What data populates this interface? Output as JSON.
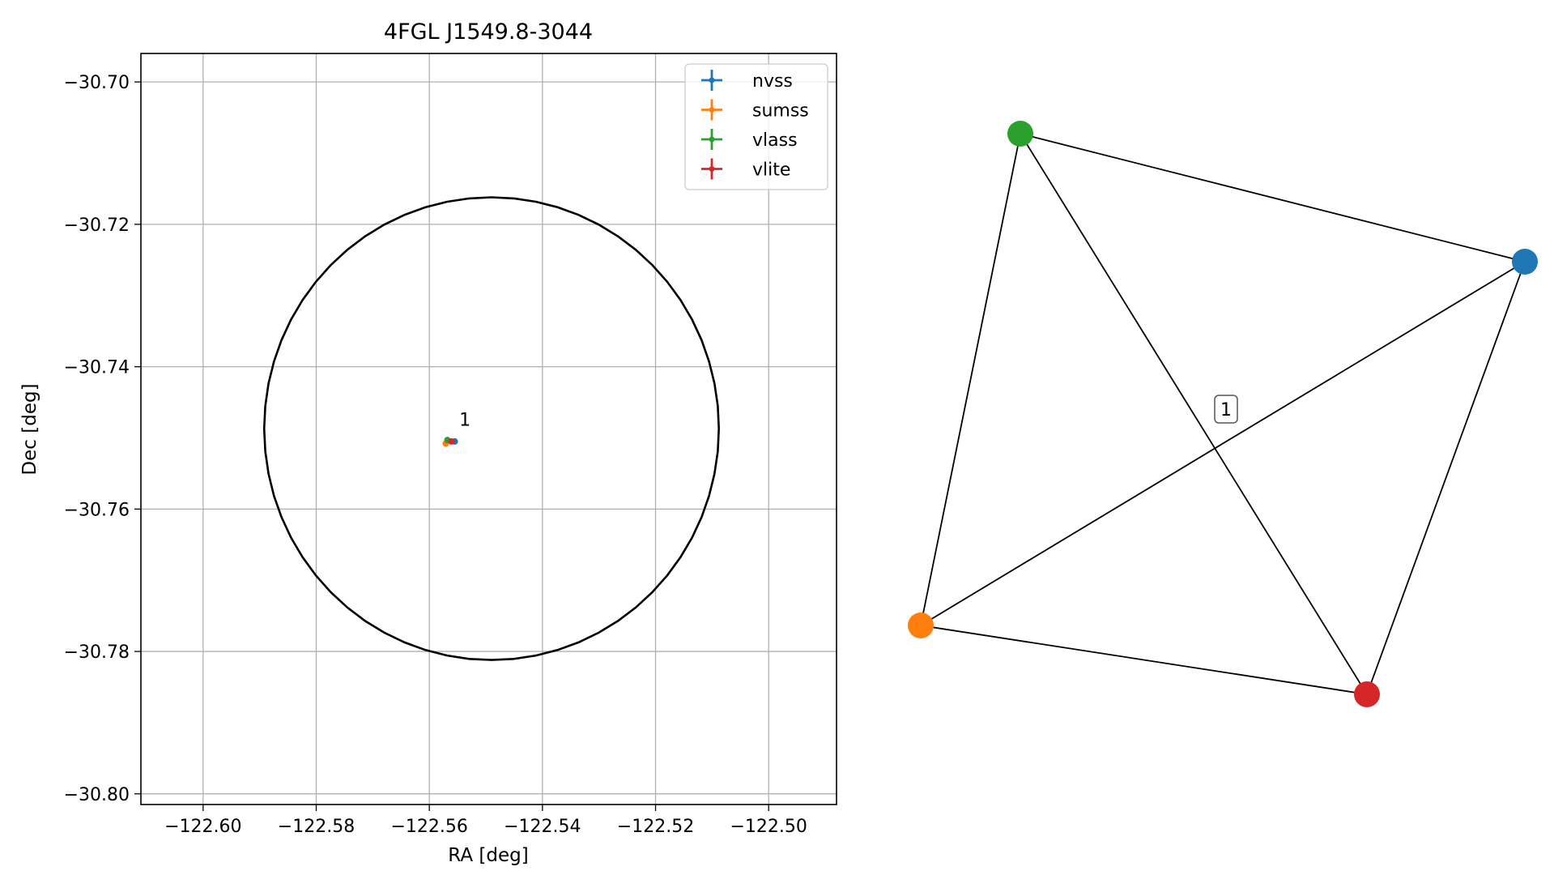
{
  "chart_data": [
    {
      "type": "scatter",
      "title": "4FGL J1549.8-3044",
      "xlabel": "RA [deg]",
      "ylabel": "Dec [deg]",
      "xlim": [
        -122.611,
        -122.488
      ],
      "ylim": [
        -30.8015,
        -30.696
      ],
      "xticks": [
        -122.6,
        -122.58,
        -122.56,
        -122.54,
        -122.52,
        -122.5
      ],
      "xtick_labels": [
        "−122.60",
        "−122.58",
        "−122.56",
        "−122.54",
        "−122.52",
        "−122.50"
      ],
      "yticks": [
        -30.7,
        -30.72,
        -30.74,
        -30.76,
        -30.78,
        -30.8
      ],
      "ytick_labels": [
        "−30.70",
        "−30.72",
        "−30.74",
        "−30.76",
        "−30.78",
        "−30.80"
      ],
      "grid": true,
      "legend_position": "upper-right",
      "series": [
        {
          "name": "nvss",
          "color": "#1f77b4",
          "x": -122.5555,
          "y": -30.7505
        },
        {
          "name": "sumss",
          "color": "#ff7f0e",
          "x": -122.5571,
          "y": -30.7508
        },
        {
          "name": "vlass",
          "color": "#2ca02c",
          "x": -122.5568,
          "y": -30.7503
        },
        {
          "name": "vlite",
          "color": "#d62728",
          "x": -122.5561,
          "y": -30.7505
        }
      ],
      "circle": {
        "center": [
          -122.549,
          -30.7487
        ],
        "radius_dec": 0.0325,
        "radius_ra": 0.0402,
        "color": "#000000"
      },
      "annotations": [
        {
          "text": "1",
          "x": -122.555,
          "y": -30.749
        }
      ]
    },
    {
      "type": "network",
      "nodes": [
        {
          "id": "vlass",
          "color": "#2ca02c"
        },
        {
          "id": "nvss",
          "color": "#1f77b4"
        },
        {
          "id": "sumss",
          "color": "#ff7f0e"
        },
        {
          "id": "vlite",
          "color": "#d62728"
        }
      ],
      "edges": [
        [
          "vlass",
          "nvss"
        ],
        [
          "vlass",
          "sumss"
        ],
        [
          "vlass",
          "vlite"
        ],
        [
          "nvss",
          "sumss"
        ],
        [
          "nvss",
          "vlite"
        ],
        [
          "sumss",
          "vlite"
        ]
      ],
      "label": "1"
    }
  ]
}
